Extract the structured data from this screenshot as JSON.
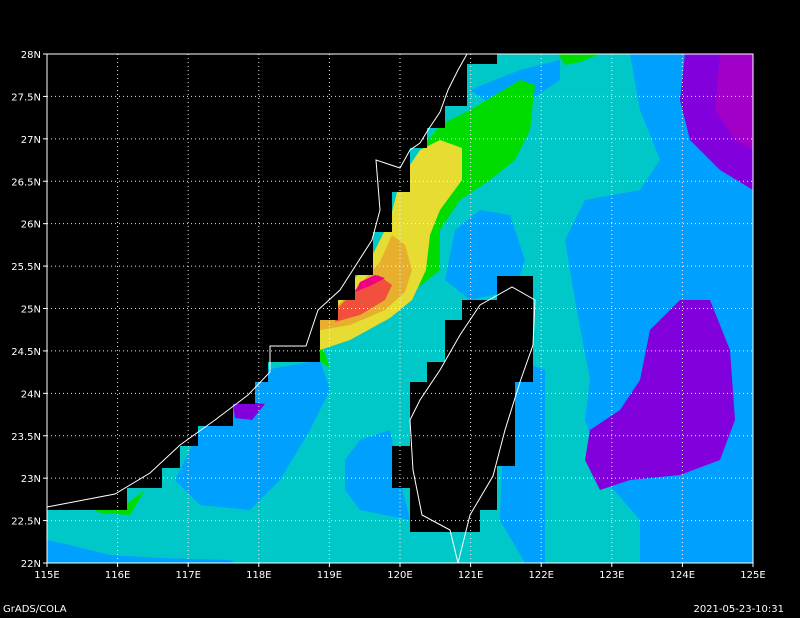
{
  "map": {
    "lon_labels": [
      "115E",
      "116E",
      "117E",
      "118E",
      "119E",
      "120E",
      "121E",
      "122E",
      "123E",
      "124E",
      "125E"
    ],
    "lat_labels": [
      "28N",
      "27.5N",
      "27N",
      "26.5N",
      "26N",
      "25.5N",
      "25N",
      "24.5N",
      "24N",
      "23.5N",
      "23N",
      "22.5N",
      "22N"
    ],
    "lon_range": [
      115,
      125
    ],
    "lat_range": [
      22,
      28
    ],
    "grid": "dotted",
    "colors": {
      "land_mask": "#000000",
      "coastline": "#ffffff",
      "cyan": "#00c8c8",
      "blue": "#00a0ff",
      "purple": "#8200dc",
      "magenta": "#a000c8",
      "green": "#00dc00",
      "yellow": "#e6dc32",
      "orange": "#e6af2d",
      "red": "#f0503c",
      "pink": "#f00082"
    }
  },
  "footer": {
    "left": "GrADS/COLA",
    "right": "2021-05-23-10:31"
  }
}
